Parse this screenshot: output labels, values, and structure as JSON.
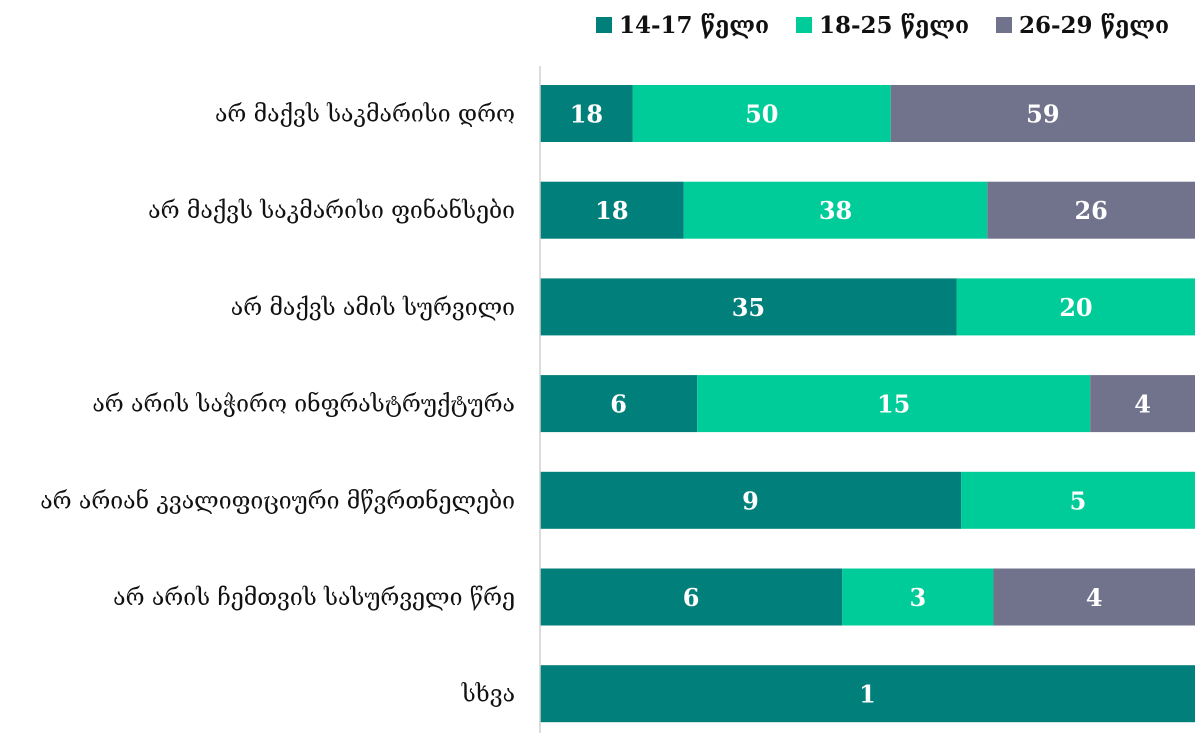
{
  "chart_data": {
    "type": "bar",
    "orientation": "horizontal",
    "stacking": "percent",
    "title": "",
    "xlabel": "",
    "ylabel": "",
    "grid": false,
    "legend_position": "top-right",
    "categories": [
      "არ მაქვს საკმარისი დრო",
      "არ მაქვს საკმარისი ფინანსები",
      "არ მაქვს ამის სურვილი",
      "არ არის საჭირო ინფრასტრუქტურა",
      "არ არიან კვალიფიციური მწვრთნელები",
      "არ არის ჩემთვის სასურველი წრე",
      "სხვა"
    ],
    "series": [
      {
        "name": "14-17 წელი",
        "color": "#007f7b",
        "values": [
          18,
          18,
          35,
          6,
          9,
          6,
          1
        ]
      },
      {
        "name": "18-25 წელი",
        "color": "#00cc99",
        "values": [
          50,
          38,
          20,
          15,
          5,
          3,
          0
        ]
      },
      {
        "name": "26-29 წელი",
        "color": "#71738c",
        "values": [
          59,
          26,
          0,
          4,
          0,
          4,
          0
        ]
      }
    ]
  }
}
